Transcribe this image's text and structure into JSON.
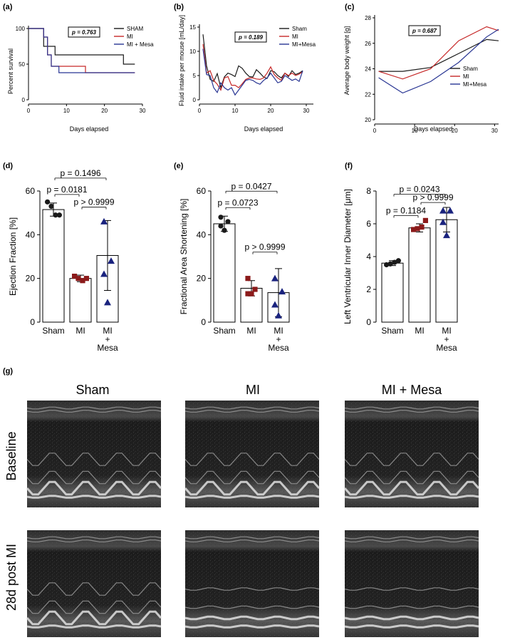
{
  "colors": {
    "sham": "#1a1a1a",
    "mi": "#c62828",
    "mesa": "#283593",
    "mi_marker": "#8b1a1a",
    "mesa_marker": "#1a237e"
  },
  "panels": {
    "a": {
      "label": "(a)"
    },
    "b": {
      "label": "(b)"
    },
    "c": {
      "label": "(c)"
    },
    "d": {
      "label": "(d)"
    },
    "e": {
      "label": "(e)"
    },
    "f": {
      "label": "(f)"
    },
    "g": {
      "label": "(g)"
    }
  },
  "chart_data": [
    {
      "id": "a",
      "type": "line",
      "step": true,
      "title": "",
      "xlabel": "Days elapsed",
      "ylabel": "Percent survival",
      "xlim": [
        0,
        30
      ],
      "ylim": [
        0,
        100
      ],
      "xticks": [
        0,
        10,
        20,
        30
      ],
      "yticks": [
        0,
        50,
        100
      ],
      "pvalue": "p = 0.763",
      "series": [
        {
          "name": "SHAM",
          "color_key": "sham",
          "x": [
            0,
            4,
            4,
            7,
            7,
            9,
            9,
            25,
            25,
            28
          ],
          "y": [
            100,
            100,
            75,
            75,
            63,
            63,
            63,
            63,
            50,
            50
          ]
        },
        {
          "name": "MI",
          "color_key": "mi",
          "x": [
            0,
            4,
            4,
            5,
            5,
            6,
            6,
            15,
            15,
            28
          ],
          "y": [
            100,
            100,
            88,
            88,
            63,
            63,
            47,
            47,
            38,
            38
          ]
        },
        {
          "name": "MI + Mesa",
          "color_key": "mesa",
          "x": [
            0,
            4,
            4,
            5,
            5,
            6,
            6,
            8,
            8,
            28
          ],
          "y": [
            100,
            100,
            88,
            88,
            63,
            63,
            47,
            47,
            38,
            38
          ]
        }
      ]
    },
    {
      "id": "b",
      "type": "line",
      "title": "",
      "xlabel": "Days elapsed",
      "ylabel": "Fluid intake per mouse [mL/day]",
      "xlim": [
        0,
        32
      ],
      "ylim": [
        0,
        15
      ],
      "xticks": [
        0,
        10,
        20,
        30
      ],
      "yticks": [
        0,
        5,
        10,
        15
      ],
      "pvalue": "p = 0.189",
      "series": [
        {
          "name": "Sham",
          "color_key": "sham",
          "x": [
            1,
            2,
            3,
            4,
            5,
            6,
            7,
            8,
            9,
            10,
            11,
            12,
            13,
            14,
            15,
            16,
            17,
            18,
            19,
            20,
            21,
            22,
            23,
            24,
            25,
            26,
            27,
            28,
            29
          ],
          "y": [
            13.5,
            7,
            4.2,
            3.8,
            5.4,
            2.5,
            4.7,
            5.5,
            5.2,
            4.8,
            7,
            6.5,
            5.5,
            4.8,
            4.7,
            6.2,
            5.5,
            4.7,
            4.4,
            6,
            5.8,
            5,
            4.5,
            5.5,
            4.8,
            6,
            5.2,
            5.5,
            6
          ]
        },
        {
          "name": "MI",
          "color_key": "mi",
          "x": [
            1,
            2,
            3,
            4,
            5,
            6,
            7,
            8,
            9,
            10,
            11,
            12,
            13,
            14,
            15,
            16,
            17,
            18,
            19,
            20,
            21,
            22,
            23,
            24,
            25,
            26,
            27,
            28,
            29
          ],
          "y": [
            11.5,
            5.5,
            6,
            4,
            3.2,
            2,
            4.5,
            4.8,
            3,
            3,
            2.5,
            3.3,
            4.2,
            4.5,
            4.5,
            4.3,
            4.2,
            4.5,
            5.5,
            6.8,
            5.2,
            4.5,
            4,
            5.5,
            5,
            5.5,
            5,
            5.3,
            5.8
          ]
        },
        {
          "name": "MI+Mesa",
          "color_key": "mesa",
          "x": [
            1,
            2,
            3,
            4,
            5,
            6,
            7,
            8,
            9,
            10,
            11,
            12,
            13,
            14,
            15,
            16,
            17,
            18,
            19,
            20,
            21,
            22,
            23,
            24,
            25,
            26,
            27,
            28,
            29
          ],
          "y": [
            10.5,
            5.2,
            5,
            2.5,
            1.5,
            3.5,
            2.5,
            2,
            2.5,
            1,
            2,
            3,
            4,
            4.2,
            4,
            3.5,
            3.2,
            4,
            4.5,
            5.5,
            4.5,
            3.5,
            3.8,
            5,
            4.5,
            4,
            4.3,
            3.8,
            6
          ]
        }
      ]
    },
    {
      "id": "c",
      "type": "line",
      "title": "",
      "xlabel": "Days elapsed",
      "ylabel": "Average body weight [g]",
      "xlim": [
        0,
        31
      ],
      "ylim": [
        20,
        28
      ],
      "xticks": [
        0,
        10,
        20,
        30
      ],
      "yticks": [
        20,
        22,
        24,
        26,
        28
      ],
      "pvalue": "p = 0.687",
      "series": [
        {
          "name": "Sham",
          "color_key": "sham",
          "x": [
            1,
            7,
            14,
            21,
            28,
            31
          ],
          "y": [
            23.8,
            23.8,
            24.1,
            25.2,
            26.3,
            26.2
          ]
        },
        {
          "name": "MI",
          "color_key": "mi",
          "x": [
            1,
            7,
            14,
            21,
            28,
            31
          ],
          "y": [
            23.8,
            23.2,
            24.0,
            26.2,
            27.3,
            27.0
          ]
        },
        {
          "name": "MI+Mesa",
          "color_key": "mesa",
          "x": [
            1,
            7,
            14,
            21,
            28,
            31
          ],
          "y": [
            23.3,
            22.1,
            23.0,
            24.5,
            26.5,
            27.1
          ]
        }
      ]
    },
    {
      "id": "d",
      "type": "bar",
      "ylabel": "Ejection Fraction [%]",
      "ylim": [
        0,
        60
      ],
      "yticks": [
        0,
        20,
        40,
        60
      ],
      "categories": [
        "Sham",
        "MI",
        "MI + Mesa"
      ],
      "means": [
        51.5,
        20,
        30.5
      ],
      "sd": [
        3,
        1.5,
        16
      ],
      "points": [
        [
          55,
          53,
          49,
          49
        ],
        [
          21,
          20,
          19,
          20
        ],
        [
          46,
          28,
          22,
          9
        ]
      ],
      "comparisons": [
        {
          "from": 0,
          "to": 1,
          "text": "p = 0.0181"
        },
        {
          "from": 1,
          "to": 2,
          "text": "p > 0.9999"
        },
        {
          "from": 0,
          "to": 2,
          "text": "p = 0.1496"
        }
      ]
    },
    {
      "id": "e",
      "type": "bar",
      "ylabel": "Fractional Area  Shortening [%]",
      "ylim": [
        0,
        60
      ],
      "yticks": [
        0,
        20,
        40,
        60
      ],
      "categories": [
        "Sham",
        "MI",
        "MI + Mesa"
      ],
      "means": [
        45,
        15.5,
        13.5
      ],
      "sd": [
        3.5,
        3.5,
        11
      ],
      "points": [
        [
          48,
          46,
          44,
          42
        ],
        [
          20,
          15,
          13,
          13
        ],
        [
          20,
          14,
          8,
          3
        ]
      ],
      "comparisons": [
        {
          "from": 0,
          "to": 1,
          "text": "p = 0.0723"
        },
        {
          "from": 1,
          "to": 2,
          "text": "p > 0.9999"
        },
        {
          "from": 0,
          "to": 2,
          "text": "p = 0.0427"
        }
      ]
    },
    {
      "id": "f",
      "type": "bar",
      "ylabel": "Left Ventricular Inner Diameter [μm]",
      "ylim": [
        0,
        8
      ],
      "yticks": [
        0,
        2,
        4,
        6,
        8
      ],
      "categories": [
        "Sham",
        "MI",
        "MI + Mesa"
      ],
      "means": [
        3.6,
        5.75,
        6.25
      ],
      "sd": [
        0.15,
        0.25,
        0.75
      ],
      "points": [
        [
          3.5,
          3.55,
          3.65,
          3.75
        ],
        [
          5.65,
          5.7,
          5.8,
          6.2
        ],
        [
          6.8,
          6.8,
          6.1,
          5.3
        ]
      ],
      "comparisons": [
        {
          "from": 0,
          "to": 1,
          "text": "p = 0.1184"
        },
        {
          "from": 1,
          "to": 2,
          "text": "p > 0.9999"
        },
        {
          "from": 0,
          "to": 2,
          "text": "p = 0.0243"
        }
      ]
    }
  ],
  "echo": {
    "columns": [
      "Sham",
      "MI",
      "MI + Mesa"
    ],
    "rows": [
      "Baseline",
      "28d post MI"
    ]
  }
}
